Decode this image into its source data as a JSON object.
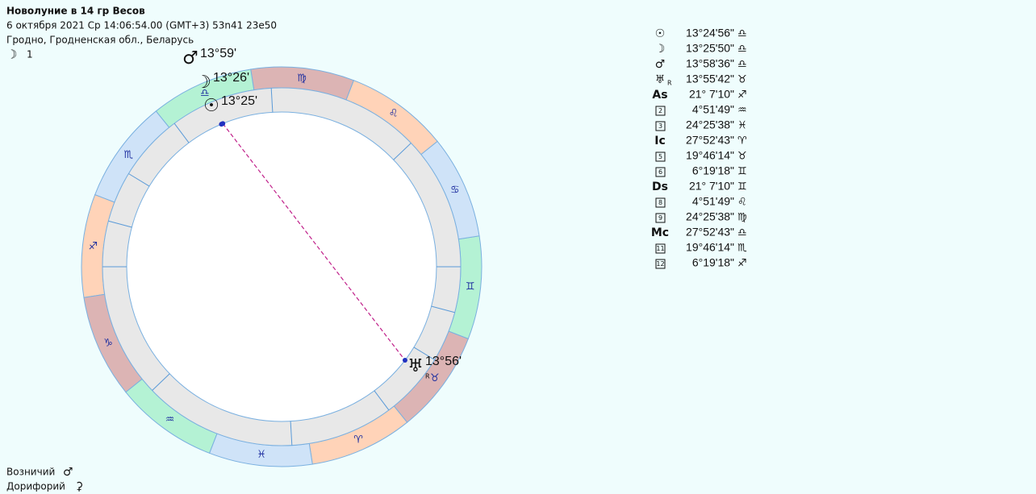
{
  "header": {
    "title": "Новолуние в 14 гр Весов",
    "line1": "6 октября 2021  Ср  14:06:54.00 (GMT+3) 53n41  23e50",
    "line2": "Гродно, Гродненская обл., Беларусь",
    "moon_glyph": "☽",
    "moon_day": 1
  },
  "wheel": {
    "signs": [
      "♈",
      "♉",
      "♊",
      "♋",
      "♌",
      "♍",
      "♎",
      "♏",
      "♐",
      "♑",
      "♒",
      "♓"
    ],
    "sign_colors": [
      "#ffd3b8",
      "#dcb4b4",
      "#b4f2d4",
      "#cfe3f8",
      "#ffd3b8",
      "#dcb4b4",
      "#b4f2d4",
      "#cfe3f8",
      "#ffd3b8",
      "#dcb4b4",
      "#b4f2d4",
      "#cfe3f8"
    ],
    "cusps": [
      261.12,
      304.86,
      354.43,
      27.88,
      49.77,
      66.32,
      81.12,
      124.86,
      174.43,
      207.88,
      229.77,
      246.32
    ],
    "bodies": [
      {
        "glyph": "☉",
        "label": "13°25'",
        "longitude": 193.42
      },
      {
        "glyph": "☽",
        "label": "13°26'",
        "longitude": 193.43
      },
      {
        "glyph": "♂",
        "label": "13°59'",
        "longitude": 193.98
      },
      {
        "glyph": "♅",
        "label": "13°56'",
        "longitude": 43.93,
        "retro": "R"
      }
    ],
    "aspects": [
      {
        "from": 0,
        "to": 3,
        "color": "#c0208a"
      }
    ]
  },
  "positions": [
    {
      "symbol": "☉",
      "value": "13°24'56\"",
      "sign": "♎"
    },
    {
      "symbol": "☽",
      "value": "13°25'50\"",
      "sign": "♎"
    },
    {
      "symbol": "♂",
      "value": "13°58'36\"",
      "sign": "♎"
    },
    {
      "symbol": "♅",
      "retro": "R",
      "value": "13°55'42\"",
      "sign": "♉"
    },
    {
      "symbol": "As",
      "value": "21° 7'10\"",
      "sign": "♐"
    },
    {
      "symbol": "2",
      "value": "4°51'49\"",
      "sign": "♒"
    },
    {
      "symbol": "3",
      "value": "24°25'38\"",
      "sign": "♓"
    },
    {
      "symbol": "Ic",
      "value": "27°52'43\"",
      "sign": "♈"
    },
    {
      "symbol": "5",
      "value": "19°46'14\"",
      "sign": "♉"
    },
    {
      "symbol": "6",
      "value": "6°19'18\"",
      "sign": "♊"
    },
    {
      "symbol": "Ds",
      "value": "21° 7'10\"",
      "sign": "♊"
    },
    {
      "symbol": "8",
      "value": "4°51'49\"",
      "sign": "♌"
    },
    {
      "symbol": "9",
      "value": "24°25'38\"",
      "sign": "♍"
    },
    {
      "symbol": "Mc",
      "value": "27°52'43\"",
      "sign": "♎"
    },
    {
      "symbol": "11",
      "value": "19°46'14\"",
      "sign": "♏"
    },
    {
      "symbol": "12",
      "value": "6°19'18\"",
      "sign": "♐"
    }
  ],
  "fixed_stars": [
    {
      "name": "Возничий",
      "glyph": "♂"
    },
    {
      "name": "Дорифорий",
      "glyph": "⚳"
    }
  ]
}
